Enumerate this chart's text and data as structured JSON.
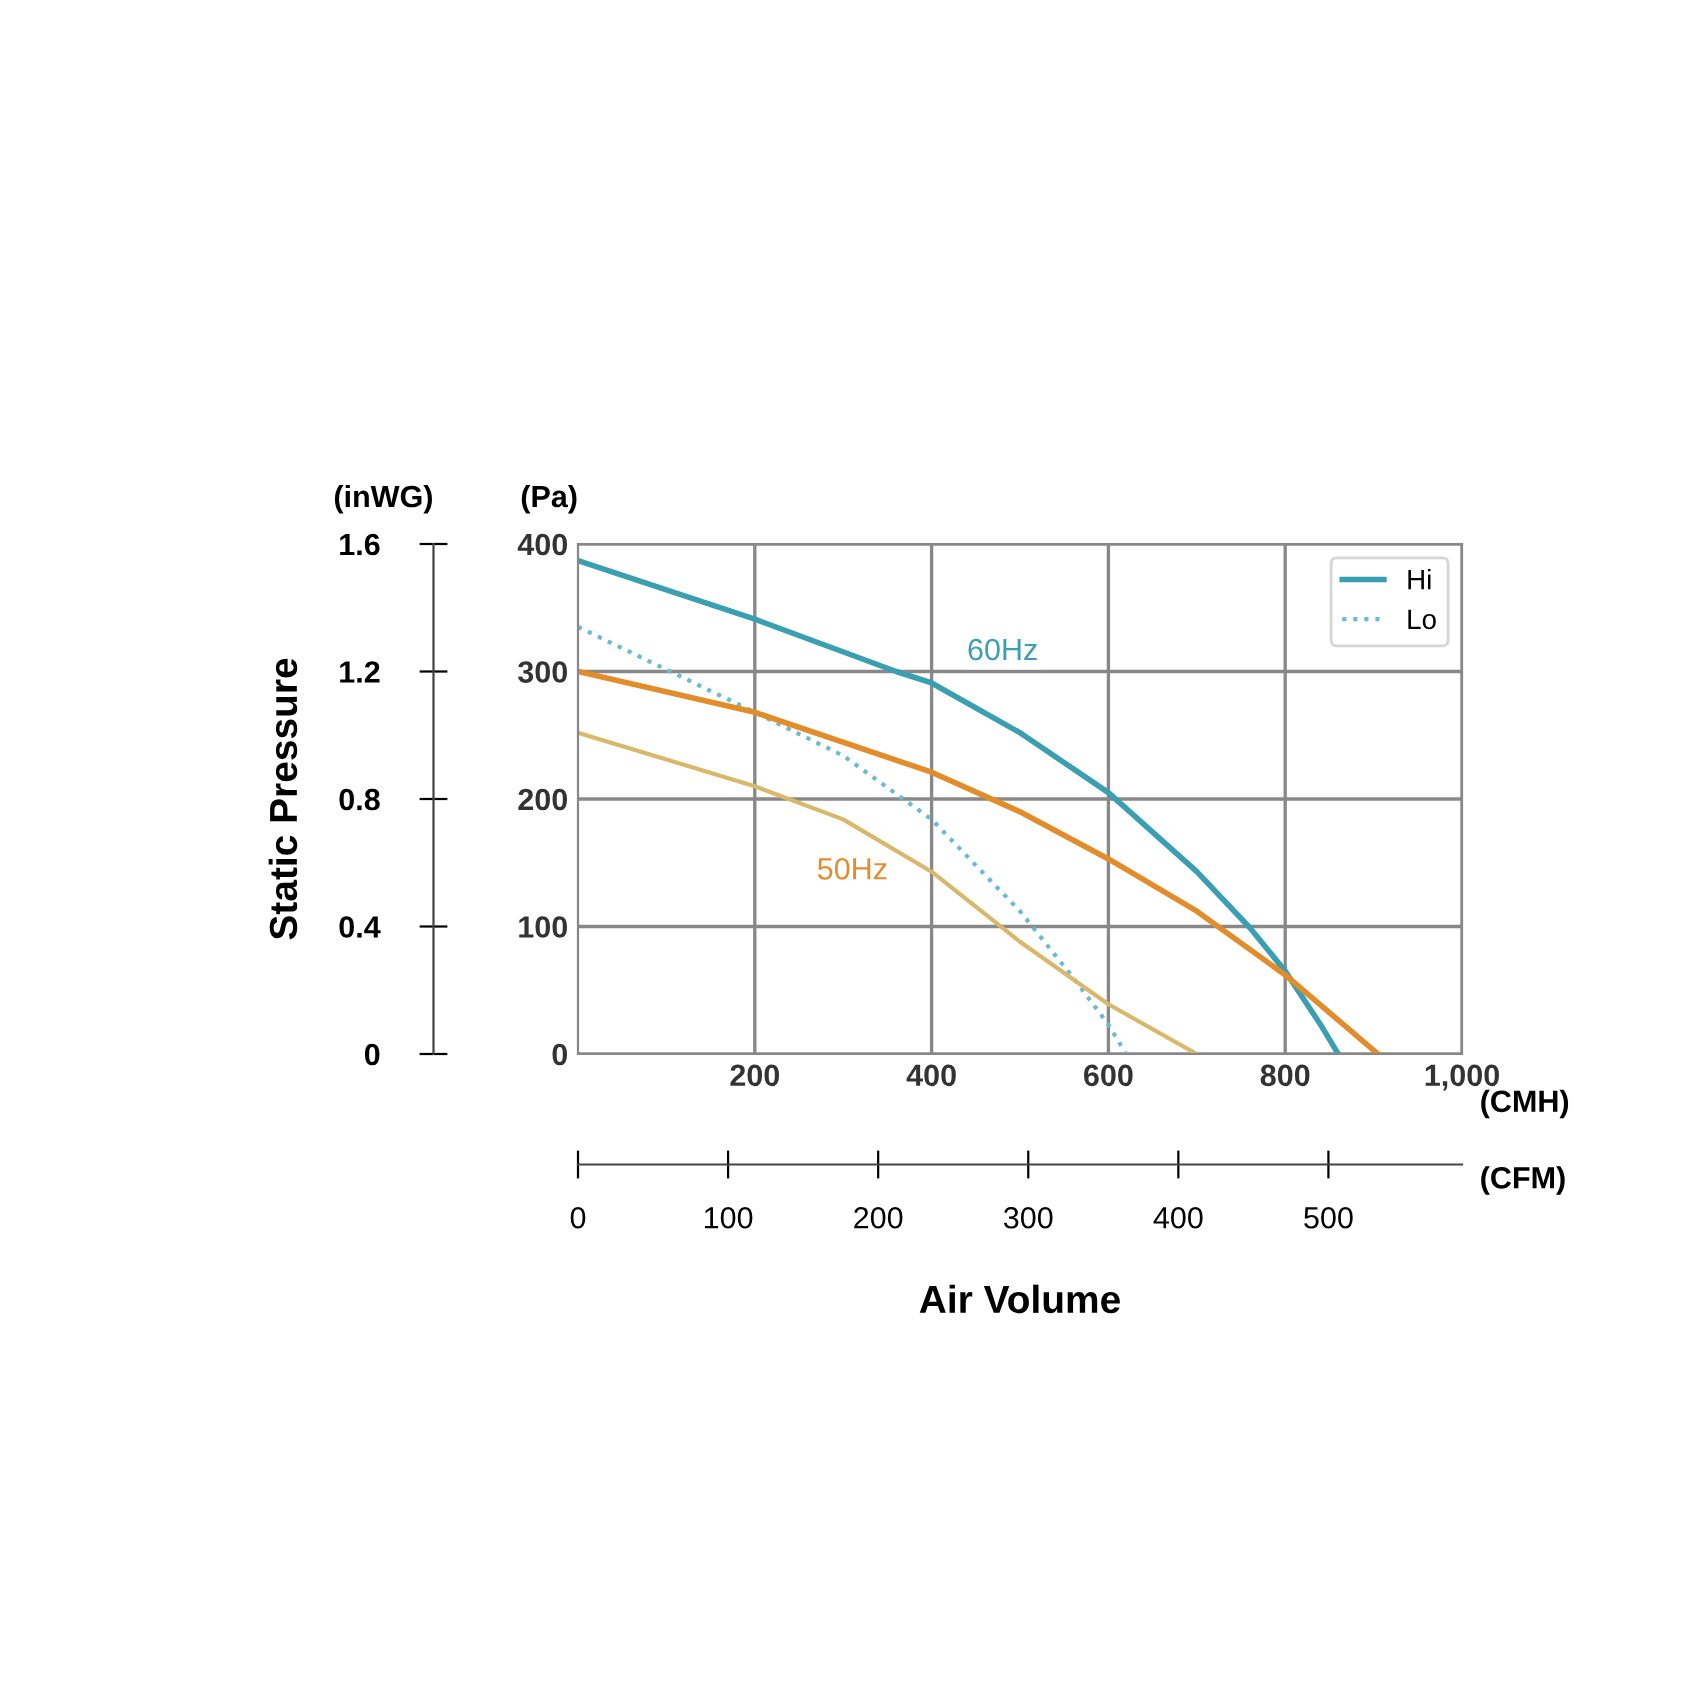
{
  "chart_data": {
    "type": "line",
    "xlabel": "Air Volume",
    "x2label": "(CFM)",
    "y2label": "Static Pressure",
    "annotations": [
      "(inWG)",
      "(Pa)",
      "(CMH)",
      "60Hz",
      "50Hz"
    ],
    "series": [
      {
        "name": "Hi",
        "color": "#3a9fb0",
        "line_style": "solid",
        "x": [
          0,
          200,
          360,
          400,
          500,
          600,
          700,
          760,
          800,
          840,
          860
        ],
        "values": [
          387,
          341,
          300,
          291,
          252,
          205,
          143,
          99,
          65,
          23,
          0
        ]
      },
      {
        "name": "Lo",
        "color": "#6cbccb",
        "line_style": "dotted",
        "x": [
          0,
          200,
          300,
          400,
          500,
          560,
          600,
          620
        ],
        "values": [
          335,
          268,
          234,
          184,
          112,
          60,
          23,
          0
        ]
      },
      {
        "color": "#e38c2c",
        "line_style": "solid",
        "x": [
          0,
          200,
          400,
          500,
          600,
          700,
          800,
          905
        ],
        "values": [
          300,
          268,
          221,
          190,
          153,
          112,
          62,
          0
        ]
      },
      {
        "color": "#d9b86c",
        "line_style": "solid",
        "x": [
          0,
          200,
          300,
          400,
          500,
          600,
          700
        ],
        "values": [
          252,
          210,
          184,
          143,
          88,
          39,
          0
        ]
      }
    ],
    "xlim": [
      0,
      1000
    ],
    "xticks": [
      200,
      400,
      600,
      800,
      {
        "value": 1000,
        "label": "1,000"
      }
    ],
    "ylim": [
      0,
      400
    ],
    "yticks": [
      0,
      100,
      200,
      300,
      400
    ],
    "y2lim": [
      0,
      1.6
    ],
    "y2ticks": [
      0,
      0.4,
      0.8,
      1.2,
      1.6
    ],
    "x2lim": [
      0,
      589
    ],
    "x2ticks": [
      0,
      100,
      200,
      300,
      400,
      500
    ],
    "grid": true,
    "legend": "top right",
    "marker": "none"
  }
}
